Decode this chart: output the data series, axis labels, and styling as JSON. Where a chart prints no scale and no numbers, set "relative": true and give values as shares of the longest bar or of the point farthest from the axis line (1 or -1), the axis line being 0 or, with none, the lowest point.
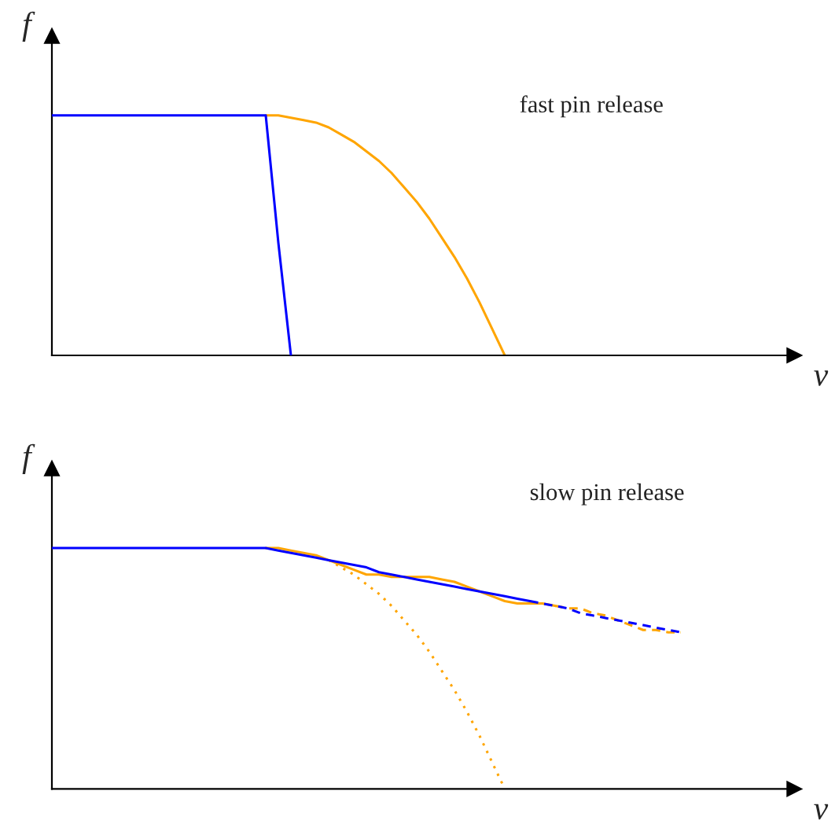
{
  "chart_data": [
    {
      "type": "line",
      "relative": true,
      "xlabel": "v",
      "ylabel": "f",
      "tick_labels": false,
      "annotations": [
        "fast pin release"
      ],
      "categories": [
        null,
        null,
        null,
        null,
        null,
        null,
        null,
        null,
        null,
        null,
        null,
        null,
        null,
        null,
        null,
        null,
        null,
        null,
        null,
        null,
        null,
        null,
        null,
        null,
        null,
        null,
        null,
        null,
        null,
        null,
        null,
        null,
        null,
        null,
        null,
        null,
        null,
        null,
        null,
        null,
        null,
        null,
        null,
        null,
        null,
        null,
        null,
        null,
        null,
        null,
        null,
        null,
        null,
        null,
        null,
        null,
        null,
        null,
        null,
        null
      ],
      "series": [
        {
          "color": "#ffa500",
          "line_style": "solid",
          "values": [
            null,
            null,
            null,
            null,
            null,
            null,
            null,
            null,
            null,
            null,
            null,
            null,
            null,
            null,
            null,
            null,
            null,
            1,
            1,
            0.99,
            0.98,
            0.97,
            0.95,
            0.92,
            0.89,
            0.85,
            0.81,
            0.76,
            0.7,
            0.64,
            0.57,
            0.49,
            0.41,
            0.32,
            0.22,
            0.11,
            0,
            null,
            null,
            null,
            null,
            null,
            null,
            null,
            null,
            null,
            null,
            null,
            null,
            null,
            null,
            null,
            null,
            null,
            null,
            null,
            null,
            null,
            null,
            null
          ]
        },
        {
          "color": "#0000ff",
          "line_style": "solid",
          "values": [
            1,
            1,
            1,
            1,
            1,
            1,
            1,
            1,
            1,
            1,
            1,
            1,
            1,
            1,
            1,
            1,
            1,
            1,
            0.47,
            0,
            null,
            null,
            null,
            null,
            null,
            null,
            null,
            null,
            null,
            null,
            null,
            null,
            null,
            null,
            null,
            null,
            null,
            null,
            null,
            null,
            null,
            null,
            null,
            null,
            null,
            null,
            null,
            null,
            null,
            null,
            null,
            null,
            null,
            null,
            null,
            null,
            null,
            null,
            null,
            null
          ]
        }
      ]
    },
    {
      "type": "line",
      "relative": true,
      "xlabel": "v",
      "ylabel": "f",
      "tick_labels": false,
      "annotations": [
        "slow pin release"
      ],
      "categories": [
        null,
        null,
        null,
        null,
        null,
        null,
        null,
        null,
        null,
        null,
        null,
        null,
        null,
        null,
        null,
        null,
        null,
        null,
        null,
        null,
        null,
        null,
        null,
        null,
        null,
        null,
        null,
        null,
        null,
        null,
        null,
        null,
        null,
        null,
        null,
        null,
        null,
        null,
        null,
        null,
        null,
        null,
        null,
        null,
        null,
        null,
        null,
        null,
        null,
        null,
        null,
        null,
        null,
        null,
        null,
        null,
        null,
        null,
        null,
        null
      ],
      "series": [
        {
          "color": "#ffa500",
          "line_style": "dotted",
          "values": [
            null,
            null,
            null,
            null,
            null,
            null,
            null,
            null,
            null,
            null,
            null,
            null,
            null,
            null,
            null,
            null,
            null,
            null,
            null,
            null,
            null,
            null,
            0.95,
            0.92,
            0.89,
            0.85,
            0.81,
            0.76,
            0.7,
            0.64,
            0.57,
            0.49,
            0.41,
            0.32,
            0.22,
            0.11,
            0,
            null,
            null,
            null,
            null,
            null,
            null,
            null,
            null,
            null,
            null,
            null,
            null,
            null,
            null,
            null,
            null,
            null,
            null,
            null,
            null,
            null,
            null,
            null
          ]
        },
        {
          "color": "#ffa500",
          "line_style": "solid",
          "values": [
            null,
            null,
            null,
            null,
            null,
            null,
            null,
            null,
            null,
            null,
            null,
            null,
            null,
            null,
            null,
            null,
            null,
            1,
            1,
            0.99,
            0.98,
            0.97,
            0.95,
            0.93,
            0.91,
            0.89,
            0.89,
            0.88,
            0.88,
            0.88,
            0.88,
            0.87,
            0.86,
            0.84,
            0.82,
            0.8,
            0.78,
            0.77,
            0.77,
            0.77,
            0.76,
            null,
            null,
            null,
            null,
            null,
            null,
            null,
            null,
            null,
            null,
            null,
            null,
            null,
            null,
            null,
            null,
            null,
            null,
            null
          ]
        },
        {
          "color": "#ffa500",
          "line_style": "dashed",
          "values": [
            null,
            null,
            null,
            null,
            null,
            null,
            null,
            null,
            null,
            null,
            null,
            null,
            null,
            null,
            null,
            null,
            null,
            null,
            null,
            null,
            null,
            null,
            null,
            null,
            null,
            null,
            null,
            null,
            null,
            null,
            null,
            null,
            null,
            null,
            null,
            null,
            null,
            null,
            null,
            null,
            0.76,
            0.75,
            0.75,
            0.73,
            0.72,
            0.7,
            0.68,
            0.66,
            0.66,
            0.65,
            0.65,
            null,
            null,
            null,
            null,
            null,
            null,
            null,
            null,
            null
          ]
        },
        {
          "color": "#0000ff",
          "line_style": "solid",
          "values": [
            1,
            1,
            1,
            1,
            1,
            1,
            1,
            1,
            1,
            1,
            1,
            1,
            1,
            1,
            1,
            1,
            1,
            1,
            0.99,
            0.98,
            0.97,
            0.96,
            0.95,
            0.94,
            0.93,
            0.92,
            0.9,
            0.89,
            0.88,
            0.87,
            0.86,
            0.85,
            0.84,
            0.83,
            0.82,
            0.81,
            0.8,
            0.79,
            0.78,
            null,
            null,
            null,
            null,
            null,
            null,
            null,
            null,
            null,
            null,
            null,
            null,
            null,
            null,
            null,
            null,
            null,
            null,
            null,
            null,
            null
          ]
        },
        {
          "color": "#0000ff",
          "line_style": "dashed",
          "values": [
            null,
            null,
            null,
            null,
            null,
            null,
            null,
            null,
            null,
            null,
            null,
            null,
            null,
            null,
            null,
            null,
            null,
            null,
            null,
            null,
            null,
            null,
            null,
            null,
            null,
            null,
            null,
            null,
            null,
            null,
            null,
            null,
            null,
            null,
            null,
            null,
            null,
            null,
            0.78,
            0.77,
            0.76,
            0.75,
            0.73,
            0.72,
            0.71,
            0.7,
            0.69,
            0.68,
            0.67,
            0.66,
            0.65,
            null,
            null,
            null,
            null,
            null,
            null,
            null,
            null,
            null
          ]
        }
      ]
    }
  ]
}
